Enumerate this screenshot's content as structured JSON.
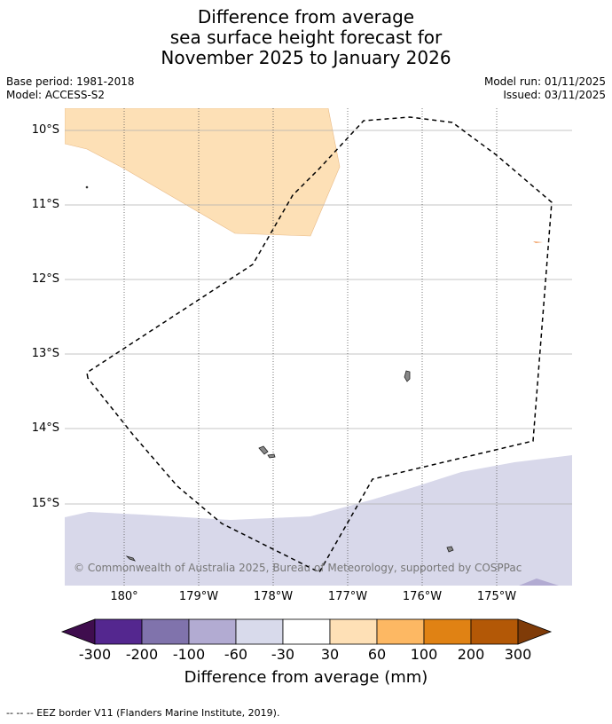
{
  "title": {
    "line1": "Difference from average",
    "line2": "sea surface height forecast for",
    "line3": "November 2025 to January 2026"
  },
  "meta": {
    "base_period": "Base period: 1981-2018",
    "model": "Model: ACCESS-S2",
    "model_run": "Model run: 01/11/2025",
    "issued": "Issued: 03/11/2025"
  },
  "map": {
    "lat_labels": [
      "10°S",
      "11°S",
      "12°S",
      "13°S",
      "14°S",
      "15°S"
    ],
    "lon_labels": [
      "180°",
      "179°W",
      "178°W",
      "177°W",
      "176°W",
      "175°W"
    ],
    "copyright": "© Commonwealth of Australia 2025, Bureau of Meteorology, supported by COSPPac",
    "colors": {
      "positive_30_60": "#fde0b6",
      "negative_30_60": "#d8d8ea",
      "land": "#888888",
      "grid": "#b0b0b0",
      "eez": "#000000"
    }
  },
  "colorbar": {
    "ticks": [
      "-300",
      "-200",
      "-100",
      "-60",
      "-30",
      "30",
      "60",
      "100",
      "200",
      "300"
    ],
    "colors": [
      "#3f0d4e",
      "#54278f",
      "#8073ac",
      "#b2abd2",
      "#d8daeb",
      "#ffffff",
      "#fee0b6",
      "#fdb863",
      "#e08214",
      "#b35806",
      "#7f3b08"
    ],
    "label": "Difference from average (mm)"
  },
  "footnote": "--  --  -- EEZ border V11 (Flanders Marine Institute, 2019)."
}
